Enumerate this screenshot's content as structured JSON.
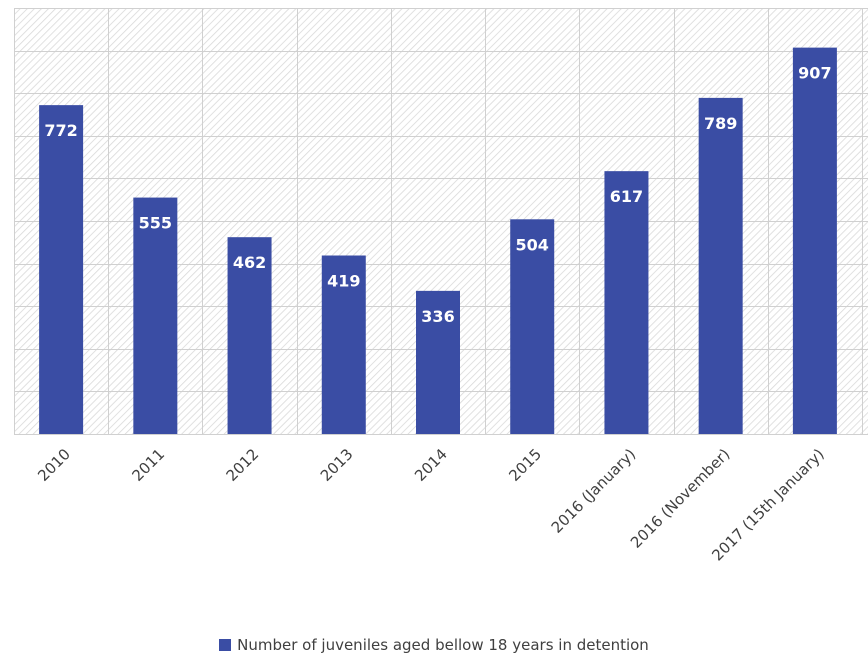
{
  "chart_data": {
    "type": "bar",
    "categories": [
      "2010",
      "2011",
      "2012",
      "2013",
      "2014",
      "2015",
      "2016 (January)",
      "2016 (November)",
      "2017 (15th January)"
    ],
    "series": [
      {
        "name": "Number of juveniles aged bellow 18 years in detention",
        "values": [
          772,
          555,
          462,
          419,
          336,
          504,
          617,
          789,
          907
        ],
        "color": "#3a4da4"
      }
    ],
    "data_labels": [
      "772",
      "555",
      "462",
      "419",
      "336",
      "504",
      "617",
      "789",
      "907"
    ],
    "ylim": [
      0,
      1000
    ],
    "title": "",
    "xlabel": "",
    "ylabel": "",
    "grid": true,
    "legend_position": "bottom",
    "plot_background": "diagonal hatch pattern",
    "hatch_color": "#d9d9d9",
    "gridline_color": "#d0d0d0",
    "tick_label_color": "#404040"
  }
}
